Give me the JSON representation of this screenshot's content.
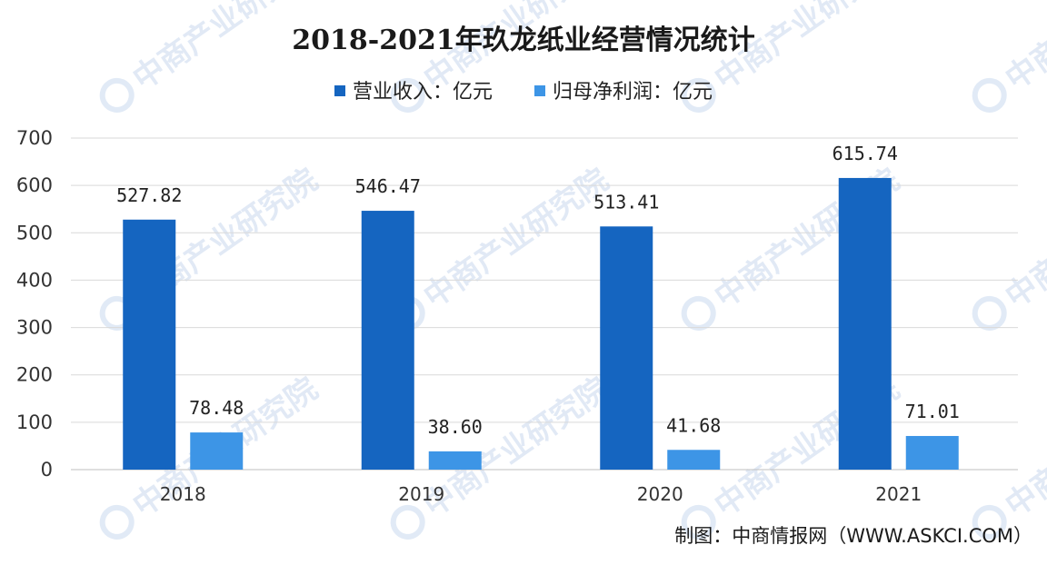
{
  "watermark": "中商产业研究院",
  "source": "制图：中商情报网（WWW.ASKCI.COM）",
  "chart_data": {
    "type": "bar",
    "title": "2018-2021年玖龙纸业经营情况统计",
    "categories": [
      "2018",
      "2019",
      "2020",
      "2021"
    ],
    "series": [
      {
        "name": "营业收入：亿元",
        "color": "#1565c0",
        "values": [
          527.82,
          546.47,
          513.41,
          615.74
        ],
        "labels": [
          "527.82",
          "546.47",
          "513.41",
          "615.74"
        ]
      },
      {
        "name": "归母净利润：亿元",
        "color": "#3d95e6",
        "values": [
          78.48,
          38.6,
          41.68,
          71.01
        ],
        "labels": [
          "78.48",
          "38.60",
          "41.68",
          "71.01"
        ]
      }
    ],
    "ylim": [
      0,
      700
    ],
    "yticks": [
      0,
      100,
      200,
      300,
      400,
      500,
      600,
      700
    ],
    "grid": true,
    "legend": "top-center"
  }
}
